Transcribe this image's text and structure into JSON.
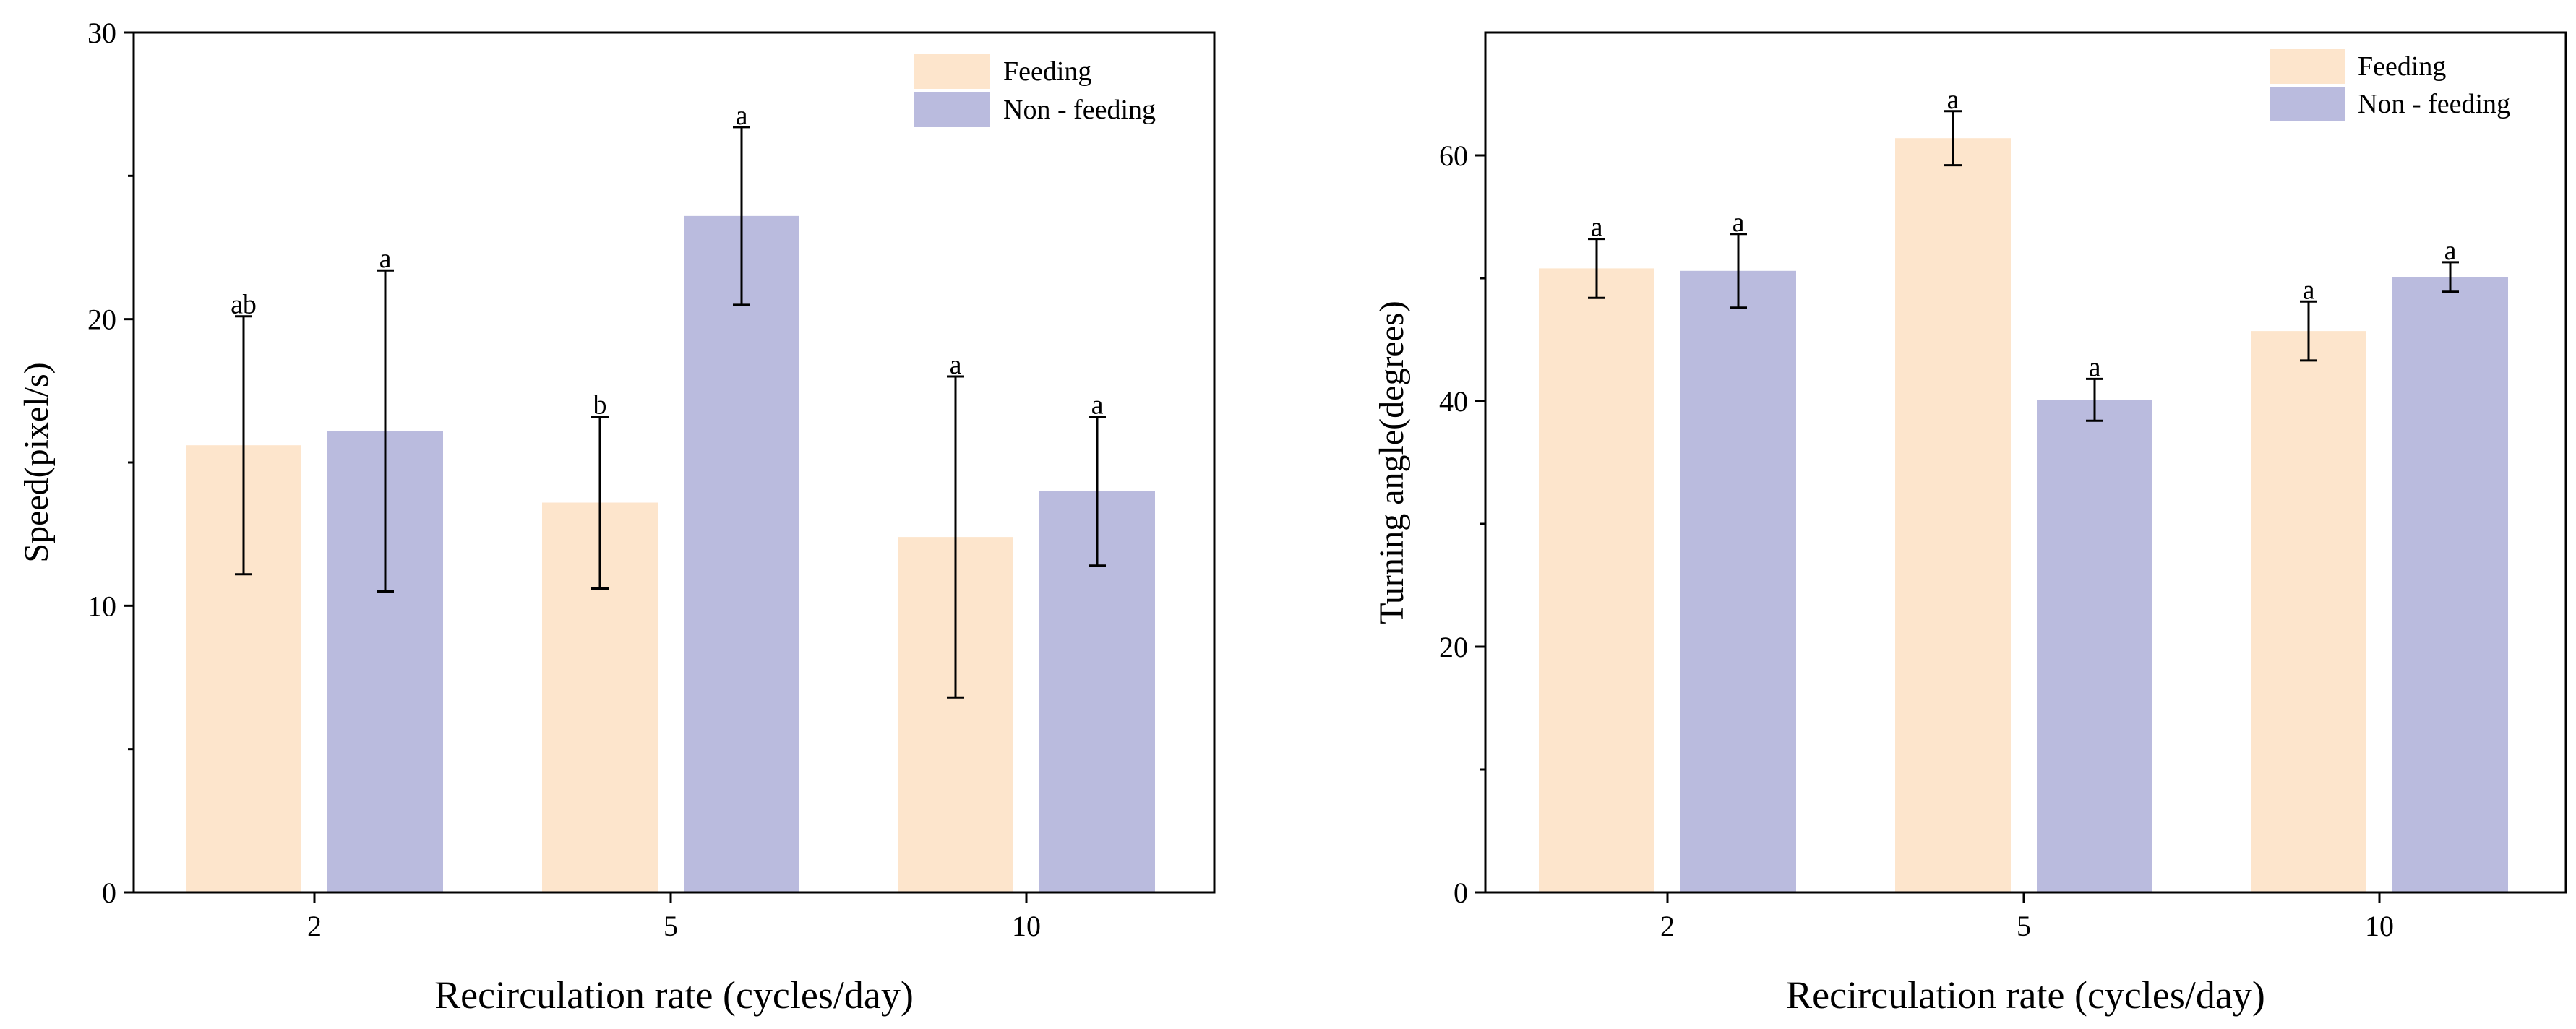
{
  "colors": {
    "feeding": "#fde5cc",
    "nonfeeding": "#babbde",
    "axis": "#000000"
  },
  "chart_data": [
    {
      "type": "bar",
      "panel": "left",
      "title": "",
      "xlabel": "Recirculation rate (cycles/day)",
      "ylabel": "Speed(pixel/s)",
      "categories": [
        "2",
        "5",
        "10"
      ],
      "ylim": [
        0,
        30
      ],
      "yticks": [
        0,
        10,
        20,
        30
      ],
      "legend_position": "top-right",
      "series": [
        {
          "name": "Feeding",
          "color_key": "feeding",
          "values": [
            15.6,
            13.6,
            12.4
          ],
          "errors": [
            4.5,
            3.0,
            5.6
          ],
          "labels": [
            "ab",
            "b",
            "a"
          ]
        },
        {
          "name": "Non - feeding",
          "color_key": "nonfeeding",
          "values": [
            16.1,
            23.6,
            14.0
          ],
          "errors": [
            5.6,
            3.1,
            2.6
          ],
          "labels": [
            "a",
            "a",
            "a"
          ]
        }
      ]
    },
    {
      "type": "bar",
      "panel": "right",
      "title": "",
      "xlabel": "Recirculation rate (cycles/day)",
      "ylabel": "Turning angle(degrees)",
      "categories": [
        "2",
        "5",
        "10"
      ],
      "ylim": [
        0,
        70
      ],
      "yticks": [
        0,
        20,
        40,
        60
      ],
      "legend_position": "top-right",
      "series": [
        {
          "name": "Feeding",
          "color_key": "feeding",
          "values": [
            50.8,
            61.4,
            45.7
          ],
          "errors": [
            2.4,
            2.2,
            2.4
          ],
          "labels": [
            "a",
            "a",
            "a"
          ]
        },
        {
          "name": "Non - feeding",
          "color_key": "nonfeeding",
          "values": [
            50.6,
            40.1,
            50.1
          ],
          "errors": [
            3.0,
            1.7,
            1.2
          ],
          "labels": [
            "a",
            "a",
            "a"
          ]
        }
      ]
    }
  ]
}
